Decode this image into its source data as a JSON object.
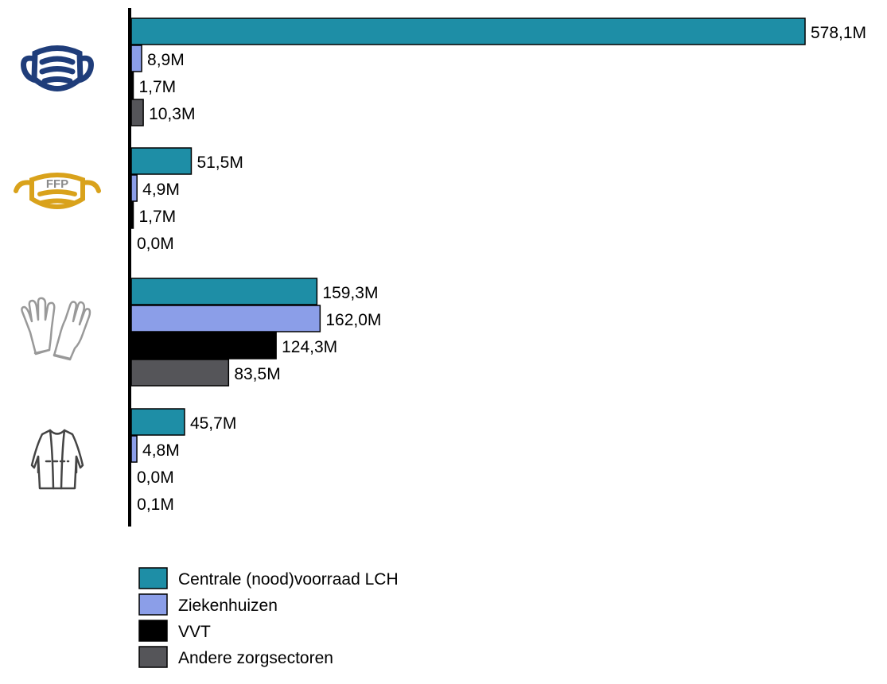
{
  "chart_data": {
    "type": "bar",
    "orientation": "horizontal",
    "categories": [
      {
        "icon": "surgical-mask-icon",
        "icon_color": "#1f3d7a"
      },
      {
        "icon": "ffp-mask-icon",
        "icon_text": "FFP",
        "icon_color": "#d9a21b"
      },
      {
        "icon": "gloves-icon",
        "icon_color": "#999999"
      },
      {
        "icon": "gown-icon",
        "icon_color": "#444444"
      }
    ],
    "series": [
      {
        "name": "Centrale (nood)voorraad LCH",
        "color": "#1e8ea6",
        "values": [
          578.1,
          51.5,
          159.3,
          45.7
        ],
        "labels": [
          "578,1M",
          "51,5M",
          "159,3M",
          "45,7M"
        ]
      },
      {
        "name": "Ziekenhuizen",
        "color": "#8b9ee8",
        "values": [
          8.9,
          4.9,
          162.0,
          4.8
        ],
        "labels": [
          "8,9M",
          "4,9M",
          "162,0M",
          "4,8M"
        ]
      },
      {
        "name": "VVT",
        "color": "#000000",
        "values": [
          1.7,
          1.7,
          124.3,
          0.0
        ],
        "labels": [
          "1,7M",
          "1,7M",
          "124,3M",
          "0,0M"
        ]
      },
      {
        "name": "Andere zorgsectoren",
        "color": "#555559",
        "values": [
          10.3,
          0.0,
          83.5,
          0.1
        ],
        "labels": [
          "10,3M",
          "0,0M",
          "83,5M",
          "0,1M"
        ]
      }
    ],
    "xlim": [
      0,
      578.1
    ],
    "grid": false,
    "legend_position": "bottom"
  }
}
